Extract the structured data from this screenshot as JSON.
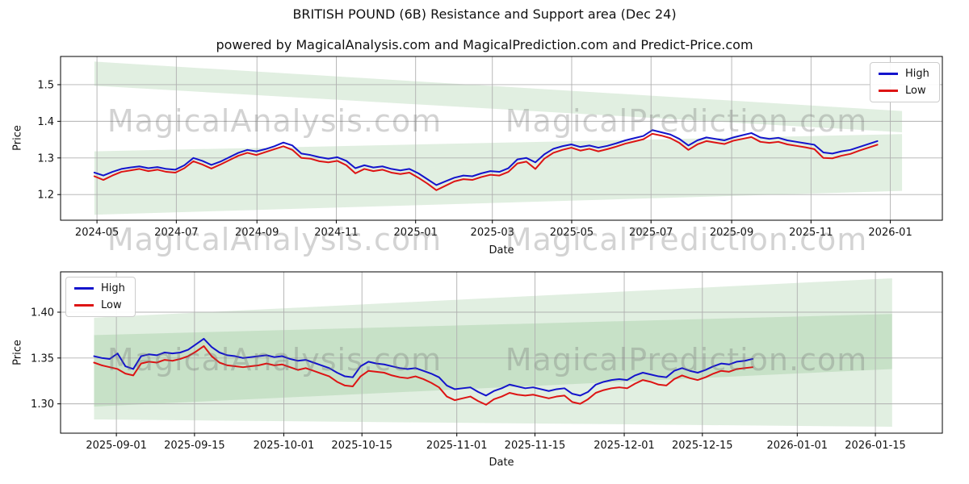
{
  "title": "BRITISH POUND (6B) Resistance and Support area (Dec 24)",
  "subtitle": "powered by MagicalAnalysis.com and MagicalPrediction.com and Predict-Price.com",
  "watermark": {
    "left_text": "MagicalAnalysis.com",
    "right_text": "MagicalPrediction.com"
  },
  "colors": {
    "high": "#1414cc",
    "low": "#dd1414",
    "band": "#2e8b2e",
    "grid": "#b0b0b0",
    "spine": "#000000",
    "text": "#111111"
  },
  "chart_data": [
    {
      "type": "line",
      "xlabel": "Date",
      "ylabel": "Price",
      "grid": true,
      "legend_position": "top-right",
      "x_domain": [
        "2024-04-03",
        "2026-02-10"
      ],
      "ylim": [
        1.13,
        1.577
      ],
      "x_ticks": [
        {
          "date": "2024-05-01",
          "label": "2024-05"
        },
        {
          "date": "2024-07-01",
          "label": "2024-07"
        },
        {
          "date": "2024-09-01",
          "label": "2024-09"
        },
        {
          "date": "2024-11-01",
          "label": "2024-11"
        },
        {
          "date": "2025-01-01",
          "label": "2025-01"
        },
        {
          "date": "2025-03-01",
          "label": "2025-03"
        },
        {
          "date": "2025-05-01",
          "label": "2025-05"
        },
        {
          "date": "2025-07-01",
          "label": "2025-07"
        },
        {
          "date": "2025-09-01",
          "label": "2025-09"
        },
        {
          "date": "2025-11-01",
          "label": "2025-11"
        },
        {
          "date": "2026-01-01",
          "label": "2026-01"
        }
      ],
      "y_ticks": [
        {
          "value": 1.2,
          "label": "1.2"
        },
        {
          "value": 1.3,
          "label": "1.3"
        },
        {
          "value": 1.4,
          "label": "1.4"
        },
        {
          "value": 1.5,
          "label": "1.5"
        }
      ],
      "series": [
        {
          "name": "High",
          "color": "high",
          "start_date": "2024-04-29",
          "step_days": 6.92,
          "values": [
            1.26,
            1.252,
            1.262,
            1.27,
            1.274,
            1.277,
            1.272,
            1.275,
            1.27,
            1.268,
            1.28,
            1.3,
            1.292,
            1.281,
            1.29,
            1.302,
            1.314,
            1.322,
            1.318,
            1.324,
            1.332,
            1.342,
            1.334,
            1.312,
            1.308,
            1.302,
            1.298,
            1.302,
            1.292,
            1.272,
            1.28,
            1.274,
            1.277,
            1.27,
            1.266,
            1.27,
            1.258,
            1.242,
            1.226,
            1.236,
            1.246,
            1.252,
            1.25,
            1.258,
            1.264,
            1.262,
            1.272,
            1.296,
            1.3,
            1.288,
            1.31,
            1.325,
            1.332,
            1.337,
            1.33,
            1.334,
            1.328,
            1.333,
            1.34,
            1.348,
            1.354,
            1.36,
            1.376,
            1.37,
            1.364,
            1.352,
            1.334,
            1.348,
            1.356,
            1.352,
            1.348,
            1.356,
            1.362,
            1.368,
            1.356,
            1.352,
            1.355,
            1.348,
            1.344,
            1.34,
            1.336,
            1.315,
            1.312,
            1.318,
            1.322,
            1.33,
            1.338,
            1.346
          ]
        },
        {
          "name": "Low",
          "color": "low",
          "start_date": "2024-04-29",
          "step_days": 6.92,
          "values": [
            1.25,
            1.24,
            1.252,
            1.262,
            1.266,
            1.27,
            1.264,
            1.268,
            1.262,
            1.26,
            1.272,
            1.291,
            1.282,
            1.271,
            1.282,
            1.294,
            1.306,
            1.314,
            1.308,
            1.316,
            1.324,
            1.332,
            1.322,
            1.3,
            1.298,
            1.291,
            1.288,
            1.292,
            1.28,
            1.258,
            1.27,
            1.264,
            1.268,
            1.26,
            1.256,
            1.26,
            1.246,
            1.23,
            1.212,
            1.224,
            1.236,
            1.242,
            1.24,
            1.248,
            1.254,
            1.252,
            1.262,
            1.285,
            1.29,
            1.27,
            1.298,
            1.314,
            1.322,
            1.328,
            1.32,
            1.325,
            1.318,
            1.324,
            1.331,
            1.339,
            1.345,
            1.351,
            1.366,
            1.361,
            1.354,
            1.341,
            1.322,
            1.337,
            1.346,
            1.342,
            1.338,
            1.347,
            1.352,
            1.357,
            1.344,
            1.341,
            1.344,
            1.337,
            1.333,
            1.329,
            1.324,
            1.3,
            1.299,
            1.306,
            1.311,
            1.32,
            1.328,
            1.336
          ]
        }
      ],
      "support_resistance_bands": [
        {
          "points_day_value": [
            [
              0,
              1.497
            ],
            [
              0,
              1.563
            ],
            [
              621,
              1.428
            ],
            [
              621,
              1.37
            ]
          ]
        },
        {
          "points_day_value": [
            [
              0,
              1.253
            ],
            [
              0,
              1.318
            ],
            [
              621,
              1.365
            ],
            [
              621,
              1.305
            ]
          ]
        },
        {
          "points_day_value": [
            [
              0,
              1.145
            ],
            [
              0,
              1.253
            ],
            [
              621,
              1.305
            ],
            [
              621,
              1.21
            ]
          ]
        }
      ]
    },
    {
      "type": "line",
      "xlabel": "Date",
      "ylabel": "Price",
      "grid": true,
      "legend_position": "top-left",
      "x_domain": [
        "2025-08-22",
        "2026-01-27"
      ],
      "ylim": [
        1.268,
        1.444
      ],
      "x_ticks": [
        {
          "date": "2025-09-01",
          "label": "2025-09-01"
        },
        {
          "date": "2025-09-15",
          "label": "2025-09-15"
        },
        {
          "date": "2025-10-01",
          "label": "2025-10-01"
        },
        {
          "date": "2025-10-15",
          "label": "2025-10-15"
        },
        {
          "date": "2025-11-01",
          "label": "2025-11-01"
        },
        {
          "date": "2025-11-15",
          "label": "2025-11-15"
        },
        {
          "date": "2025-12-01",
          "label": "2025-12-01"
        },
        {
          "date": "2025-12-15",
          "label": "2025-12-15"
        },
        {
          "date": "2026-01-01",
          "label": "2026-01-01"
        },
        {
          "date": "2026-01-15",
          "label": "2026-01-15"
        }
      ],
      "y_ticks": [
        {
          "value": 1.3,
          "label": "1.30"
        },
        {
          "value": 1.35,
          "label": "1.35"
        },
        {
          "value": 1.4,
          "label": "1.40"
        }
      ],
      "series": [
        {
          "name": "High",
          "color": "high",
          "start_date": "2025-08-28",
          "step_days": 1.4048,
          "values": [
            1.352,
            1.35,
            1.349,
            1.355,
            1.341,
            1.338,
            1.352,
            1.354,
            1.353,
            1.356,
            1.355,
            1.356,
            1.359,
            1.365,
            1.371,
            1.362,
            1.356,
            1.353,
            1.352,
            1.35,
            1.351,
            1.352,
            1.353,
            1.351,
            1.352,
            1.349,
            1.347,
            1.348,
            1.345,
            1.342,
            1.339,
            1.334,
            1.33,
            1.329,
            1.341,
            1.346,
            1.344,
            1.343,
            1.341,
            1.339,
            1.338,
            1.339,
            1.336,
            1.333,
            1.329,
            1.32,
            1.316,
            1.317,
            1.318,
            1.313,
            1.309,
            1.314,
            1.317,
            1.321,
            1.319,
            1.317,
            1.318,
            1.316,
            1.314,
            1.316,
            1.317,
            1.311,
            1.309,
            1.313,
            1.321,
            1.324,
            1.326,
            1.327,
            1.326,
            1.331,
            1.334,
            1.332,
            1.33,
            1.329,
            1.336,
            1.339,
            1.336,
            1.334,
            1.337,
            1.341,
            1.344,
            1.343,
            1.346,
            1.347,
            1.349
          ]
        },
        {
          "name": "Low",
          "color": "low",
          "start_date": "2025-08-28",
          "step_days": 1.4048,
          "values": [
            1.345,
            1.342,
            1.34,
            1.338,
            1.333,
            1.331,
            1.344,
            1.346,
            1.345,
            1.348,
            1.347,
            1.349,
            1.352,
            1.357,
            1.363,
            1.352,
            1.345,
            1.342,
            1.341,
            1.34,
            1.341,
            1.342,
            1.344,
            1.342,
            1.343,
            1.34,
            1.337,
            1.339,
            1.336,
            1.333,
            1.33,
            1.324,
            1.32,
            1.319,
            1.33,
            1.336,
            1.335,
            1.334,
            1.331,
            1.329,
            1.328,
            1.33,
            1.327,
            1.323,
            1.318,
            1.308,
            1.304,
            1.306,
            1.308,
            1.303,
            1.299,
            1.305,
            1.308,
            1.312,
            1.31,
            1.309,
            1.31,
            1.308,
            1.306,
            1.308,
            1.309,
            1.302,
            1.3,
            1.305,
            1.312,
            1.315,
            1.317,
            1.318,
            1.317,
            1.322,
            1.326,
            1.324,
            1.321,
            1.32,
            1.327,
            1.331,
            1.328,
            1.326,
            1.329,
            1.333,
            1.336,
            1.335,
            1.338,
            1.339,
            1.34
          ]
        }
      ],
      "support_resistance_bands": [
        {
          "points_day_value": [
            [
              0,
              1.283
            ],
            [
              0,
              1.394
            ],
            [
              143,
              1.437
            ],
            [
              143,
              1.275
            ]
          ]
        },
        {
          "points_day_value": [
            [
              0,
              1.297
            ],
            [
              0,
              1.375
            ],
            [
              143,
              1.398
            ],
            [
              143,
              1.338
            ]
          ]
        }
      ]
    }
  ]
}
